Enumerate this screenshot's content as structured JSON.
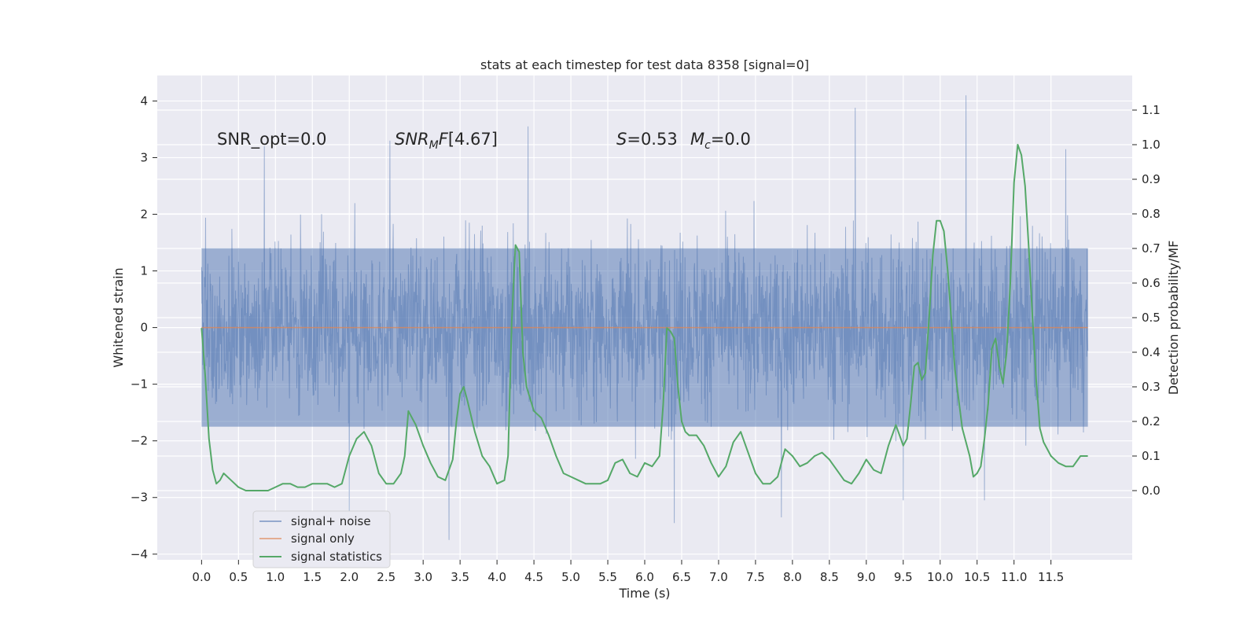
{
  "chart_data": {
    "type": "line",
    "title": "stats at each timestep for test data 8358 [signal=0]",
    "xlabel": "Time (s)",
    "ylabel": "Whitened strain",
    "y2label": "Detection probability/MF",
    "xlim": [
      -0.6,
      12.6
    ],
    "ylim": [
      -4.1,
      4.45
    ],
    "y2lim": [
      -0.2,
      1.2
    ],
    "xticks": [
      "0.0",
      "0.5",
      "1.0",
      "1.5",
      "2.0",
      "2.5",
      "3.0",
      "3.5",
      "4.0",
      "4.5",
      "5.0",
      "5.5",
      "6.0",
      "6.5",
      "7.0",
      "7.5",
      "8.0",
      "8.5",
      "9.0",
      "9.5",
      "10.0",
      "10.5",
      "11.0",
      "11.5"
    ],
    "yticks": [
      "4",
      "3",
      "2",
      "1",
      "0",
      "−1",
      "−2",
      "−3",
      "−4"
    ],
    "y2ticks": [
      "1.1",
      "1.0",
      "0.9",
      "0.8",
      "0.7",
      "0.6",
      "0.5",
      "0.4",
      "0.3",
      "0.2",
      "0.1",
      "0.0"
    ],
    "grid": true,
    "legend_position": "lower-left",
    "colors": {
      "noise": "#4c72b0",
      "signal": "#dd8452",
      "stats": "#55a868",
      "axes_bg": "#eaeaf2",
      "grid": "#ffffff"
    },
    "annotations": {
      "snr_opt": "SNR_opt=0.0",
      "snr_mf": "[4.67]",
      "s_val": "=0.53",
      "mc_val": "=0.0"
    },
    "series": [
      {
        "name": "signal+ noise",
        "axis": "left",
        "color": "#4c72b0",
        "x_range": [
          0.0,
          12.0
        ],
        "noise_band": [
          -1.75,
          1.4
        ],
        "peak_high": [
          [
            0.85,
            3.2
          ],
          [
            2.55,
            3.3
          ],
          [
            4.42,
            3.55
          ],
          [
            8.85,
            3.88
          ],
          [
            10.35,
            4.1
          ],
          [
            11.7,
            3.15
          ]
        ],
        "peak_low": [
          [
            2.0,
            -3.25
          ],
          [
            3.35,
            -3.75
          ],
          [
            6.4,
            -3.45
          ],
          [
            7.85,
            -3.35
          ],
          [
            9.5,
            -3.05
          ],
          [
            10.6,
            -3.05
          ]
        ]
      },
      {
        "name": "signal only",
        "axis": "left",
        "color": "#dd8452",
        "x": [
          0.0,
          12.0
        ],
        "y": [
          0.0,
          0.0
        ]
      },
      {
        "name": "signal statistics",
        "axis": "right",
        "color": "#55a868",
        "x": [
          0.0,
          0.05,
          0.1,
          0.15,
          0.2,
          0.25,
          0.3,
          0.4,
          0.5,
          0.6,
          0.7,
          0.8,
          0.9,
          1.0,
          1.1,
          1.2,
          1.3,
          1.4,
          1.5,
          1.6,
          1.7,
          1.8,
          1.9,
          2.0,
          2.1,
          2.2,
          2.3,
          2.4,
          2.5,
          2.6,
          2.7,
          2.75,
          2.8,
          2.9,
          3.0,
          3.1,
          3.2,
          3.3,
          3.4,
          3.45,
          3.5,
          3.55,
          3.6,
          3.7,
          3.8,
          3.9,
          4.0,
          4.1,
          4.15,
          4.2,
          4.25,
          4.3,
          4.35,
          4.4,
          4.5,
          4.6,
          4.7,
          4.8,
          4.9,
          5.0,
          5.1,
          5.2,
          5.3,
          5.4,
          5.5,
          5.6,
          5.7,
          5.8,
          5.9,
          6.0,
          6.1,
          6.2,
          6.25,
          6.3,
          6.35,
          6.4,
          6.45,
          6.5,
          6.55,
          6.6,
          6.7,
          6.8,
          6.9,
          7.0,
          7.1,
          7.2,
          7.3,
          7.4,
          7.5,
          7.6,
          7.7,
          7.8,
          7.9,
          8.0,
          8.1,
          8.2,
          8.3,
          8.4,
          8.5,
          8.6,
          8.7,
          8.8,
          8.9,
          9.0,
          9.1,
          9.2,
          9.3,
          9.4,
          9.45,
          9.5,
          9.55,
          9.6,
          9.65,
          9.7,
          9.75,
          9.8,
          9.85,
          9.9,
          9.95,
          10.0,
          10.05,
          10.1,
          10.15,
          10.2,
          10.3,
          10.4,
          10.45,
          10.5,
          10.55,
          10.6,
          10.65,
          10.7,
          10.75,
          10.8,
          10.85,
          10.9,
          10.95,
          11.0,
          11.05,
          11.1,
          11.15,
          11.2,
          11.25,
          11.3,
          11.35,
          11.4,
          11.5,
          11.6,
          11.7,
          11.8,
          11.9,
          12.0
        ],
        "y": [
          0.47,
          0.33,
          0.15,
          0.06,
          0.02,
          0.03,
          0.05,
          0.03,
          0.01,
          0.0,
          0.0,
          0.0,
          0.0,
          0.01,
          0.02,
          0.02,
          0.01,
          0.01,
          0.02,
          0.02,
          0.02,
          0.01,
          0.02,
          0.1,
          0.15,
          0.17,
          0.13,
          0.05,
          0.02,
          0.02,
          0.05,
          0.1,
          0.23,
          0.19,
          0.13,
          0.08,
          0.04,
          0.03,
          0.09,
          0.2,
          0.28,
          0.3,
          0.26,
          0.17,
          0.1,
          0.07,
          0.02,
          0.03,
          0.1,
          0.49,
          0.71,
          0.69,
          0.4,
          0.3,
          0.23,
          0.21,
          0.16,
          0.1,
          0.05,
          0.04,
          0.03,
          0.02,
          0.02,
          0.02,
          0.03,
          0.08,
          0.09,
          0.05,
          0.04,
          0.08,
          0.07,
          0.1,
          0.25,
          0.47,
          0.46,
          0.44,
          0.3,
          0.2,
          0.17,
          0.16,
          0.16,
          0.13,
          0.08,
          0.04,
          0.07,
          0.14,
          0.17,
          0.11,
          0.05,
          0.02,
          0.02,
          0.04,
          0.12,
          0.1,
          0.07,
          0.08,
          0.1,
          0.11,
          0.09,
          0.06,
          0.03,
          0.02,
          0.05,
          0.09,
          0.06,
          0.05,
          0.13,
          0.19,
          0.16,
          0.13,
          0.15,
          0.25,
          0.36,
          0.37,
          0.32,
          0.34,
          0.5,
          0.68,
          0.78,
          0.78,
          0.75,
          0.64,
          0.5,
          0.35,
          0.18,
          0.1,
          0.04,
          0.05,
          0.07,
          0.15,
          0.25,
          0.41,
          0.44,
          0.36,
          0.31,
          0.4,
          0.6,
          0.89,
          1.0,
          0.97,
          0.88,
          0.7,
          0.5,
          0.32,
          0.18,
          0.14,
          0.1,
          0.08,
          0.07,
          0.07,
          0.1,
          0.1
        ]
      }
    ]
  }
}
